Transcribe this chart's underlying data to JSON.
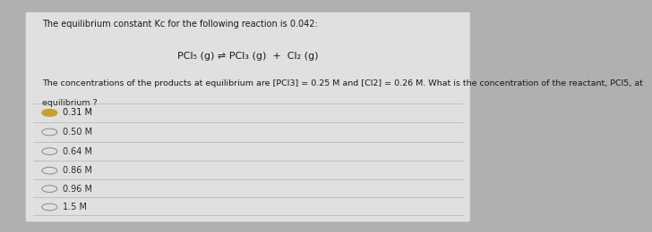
{
  "bg_color": "#b0b0b0",
  "card_color": "#e0e0e0",
  "title_text": "The equilibrium constant Kc for the following reaction is 0.042:",
  "reaction_text": "PCl5 (g) ⇌ PCl3 (g)  +  Cl2 (g)",
  "body_text_1": "The concentrations of the products at equilibrium are [PCl3] = 0.25 M and [Cl2] = 0.26 M. What is the concentration of the reactant, PCl5, at",
  "body_text_2": "equilibrium ?",
  "options": [
    "0.31 M",
    "0.50 M",
    "0.64 M",
    "0.86 M",
    "0.96 M",
    "1.5 M"
  ],
  "selected_index": 0,
  "text_color": "#1a1a1a",
  "option_color": "#2a2a2a",
  "highlight_color": "#c8a030",
  "line_color": "#aaaaaa",
  "title_fontsize": 7.0,
  "reaction_fontsize": 8.0,
  "body_fontsize": 6.8,
  "option_fontsize": 7.0
}
